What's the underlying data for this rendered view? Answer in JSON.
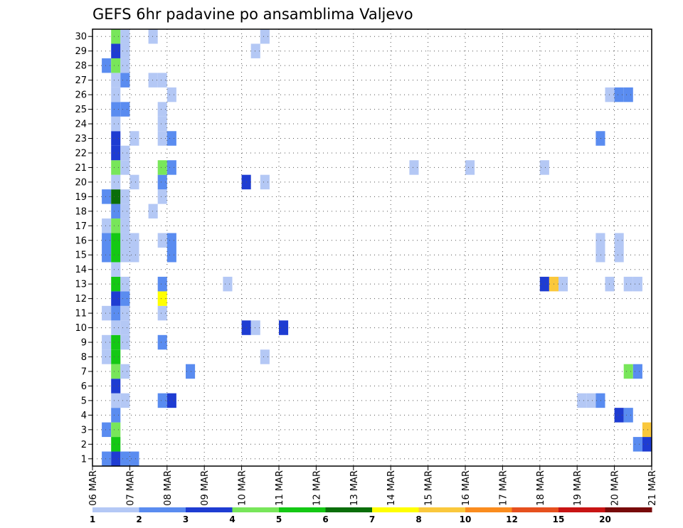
{
  "chart_data": {
    "type": "heatmap",
    "title": "GEFS 6hr padavine po ansamblima Valjevo",
    "xlabel": "",
    "ylabel": "",
    "x_ticks": [
      "06 MAR",
      "07 MAR",
      "08 MAR",
      "09 MAR",
      "10 MAR",
      "11 MAR",
      "12 MAR",
      "13 MAR",
      "14 MAR",
      "15 MAR",
      "16 MAR",
      "17 MAR",
      "18 MAR",
      "19 MAR",
      "20 MAR",
      "21 MAR"
    ],
    "y_ticks": [
      "1",
      "2",
      "3",
      "4",
      "5",
      "6",
      "7",
      "8",
      "9",
      "10",
      "11",
      "12",
      "13",
      "14",
      "15",
      "16",
      "17",
      "18",
      "19",
      "20",
      "21",
      "22",
      "23",
      "24",
      "25",
      "26",
      "27",
      "28",
      "29",
      "30"
    ],
    "x_range_days": [
      0,
      15
    ],
    "y_range": [
      0.5,
      30.5
    ],
    "grid": true,
    "time_step_hours": 6,
    "colorbar": {
      "placement": "bottom",
      "labels": [
        "1",
        "2",
        "3",
        "4",
        "5",
        "6",
        "7",
        "8",
        "10",
        "12",
        "15",
        "20"
      ],
      "colors": [
        "#b4c8f5",
        "#5a8cf0",
        "#1e3cd2",
        "#78e65a",
        "#14c814",
        "#0a6e0a",
        "#ffff00",
        "#fac83c",
        "#fa8c1e",
        "#e6501e",
        "#c81414",
        "#780a0a"
      ]
    },
    "cells": [
      {
        "member": 1,
        "x": [
          [
            0.25,
            1
          ],
          [
            0.5,
            2
          ],
          [
            0.75,
            1
          ],
          [
            1.0,
            1
          ]
        ]
      },
      {
        "member": 2,
        "x": [
          [
            0.5,
            4
          ],
          [
            14.5,
            1
          ],
          [
            14.75,
            2
          ]
        ]
      },
      {
        "member": 3,
        "x": [
          [
            0.25,
            1
          ],
          [
            0.5,
            3
          ],
          [
            14.75,
            7
          ]
        ]
      },
      {
        "member": 4,
        "x": [
          [
            0.5,
            1
          ],
          [
            14.0,
            2
          ],
          [
            14.25,
            1
          ]
        ]
      },
      {
        "member": 5,
        "x": [
          [
            0.5,
            0
          ],
          [
            0.75,
            0
          ],
          [
            1.75,
            1
          ],
          [
            2.0,
            2
          ],
          [
            13.0,
            0
          ],
          [
            13.25,
            0
          ],
          [
            13.5,
            1
          ]
        ]
      },
      {
        "member": 6,
        "x": [
          [
            0.5,
            2
          ]
        ]
      },
      {
        "member": 7,
        "x": [
          [
            0.5,
            3
          ],
          [
            0.75,
            0
          ],
          [
            2.5,
            1
          ],
          [
            14.25,
            3
          ],
          [
            14.5,
            1
          ]
        ]
      },
      {
        "member": 8,
        "x": [
          [
            0.25,
            0
          ],
          [
            0.5,
            4
          ],
          [
            4.5,
            0
          ]
        ]
      },
      {
        "member": 9,
        "x": [
          [
            0.25,
            0
          ],
          [
            0.5,
            4
          ],
          [
            0.75,
            0
          ],
          [
            1.75,
            1
          ]
        ]
      },
      {
        "member": 10,
        "x": [
          [
            0.5,
            0
          ],
          [
            0.75,
            0
          ],
          [
            4.0,
            2
          ],
          [
            4.25,
            0
          ],
          [
            5.0,
            2
          ]
        ]
      },
      {
        "member": 11,
        "x": [
          [
            0.25,
            0
          ],
          [
            0.5,
            1
          ],
          [
            0.75,
            0
          ],
          [
            1.75,
            0
          ]
        ]
      },
      {
        "member": 12,
        "x": [
          [
            0.5,
            2
          ],
          [
            0.75,
            1
          ],
          [
            1.75,
            6
          ]
        ]
      },
      {
        "member": 13,
        "x": [
          [
            0.5,
            4
          ],
          [
            0.75,
            0
          ],
          [
            1.75,
            1
          ],
          [
            3.5,
            0
          ],
          [
            12.0,
            2
          ],
          [
            12.25,
            7
          ],
          [
            12.5,
            0
          ],
          [
            13.75,
            0
          ],
          [
            14.25,
            0
          ],
          [
            14.5,
            0
          ]
        ]
      },
      {
        "member": 14,
        "x": [
          [
            0.5,
            0
          ]
        ]
      },
      {
        "member": 15,
        "x": [
          [
            0.25,
            1
          ],
          [
            0.5,
            4
          ],
          [
            0.75,
            0
          ],
          [
            1.0,
            0
          ],
          [
            2.0,
            1
          ],
          [
            13.5,
            0
          ],
          [
            14.0,
            0
          ]
        ]
      },
      {
        "member": 16,
        "x": [
          [
            0.25,
            1
          ],
          [
            0.5,
            4
          ],
          [
            0.75,
            0
          ],
          [
            1.0,
            0
          ],
          [
            1.75,
            0
          ],
          [
            2.0,
            1
          ],
          [
            13.5,
            0
          ],
          [
            14.0,
            0
          ]
        ]
      },
      {
        "member": 17,
        "x": [
          [
            0.25,
            0
          ],
          [
            0.5,
            3
          ],
          [
            0.75,
            0
          ]
        ]
      },
      {
        "member": 18,
        "x": [
          [
            0.5,
            1
          ],
          [
            0.75,
            0
          ],
          [
            1.5,
            0
          ]
        ]
      },
      {
        "member": 19,
        "x": [
          [
            0.25,
            1
          ],
          [
            0.5,
            5
          ],
          [
            0.75,
            0
          ],
          [
            1.75,
            0
          ]
        ]
      },
      {
        "member": 20,
        "x": [
          [
            0.5,
            0
          ],
          [
            1.0,
            0
          ],
          [
            1.75,
            1
          ],
          [
            4.0,
            2
          ],
          [
            4.5,
            0
          ]
        ]
      },
      {
        "member": 21,
        "x": [
          [
            0.5,
            3
          ],
          [
            0.75,
            0
          ],
          [
            1.75,
            3
          ],
          [
            2.0,
            1
          ],
          [
            8.5,
            0
          ],
          [
            10.0,
            0
          ],
          [
            12.0,
            0
          ]
        ]
      },
      {
        "member": 22,
        "x": [
          [
            0.5,
            2
          ],
          [
            0.75,
            0
          ]
        ]
      },
      {
        "member": 23,
        "x": [
          [
            0.5,
            2
          ],
          [
            1.0,
            0
          ],
          [
            1.75,
            0
          ],
          [
            2.0,
            1
          ],
          [
            13.5,
            1
          ]
        ]
      },
      {
        "member": 24,
        "x": [
          [
            0.5,
            0
          ],
          [
            1.75,
            0
          ]
        ]
      },
      {
        "member": 25,
        "x": [
          [
            0.5,
            1
          ],
          [
            0.75,
            1
          ],
          [
            1.75,
            0
          ]
        ]
      },
      {
        "member": 26,
        "x": [
          [
            0.5,
            0
          ],
          [
            2.0,
            0
          ],
          [
            13.75,
            0
          ],
          [
            14.0,
            1
          ],
          [
            14.25,
            1
          ]
        ]
      },
      {
        "member": 27,
        "x": [
          [
            0.5,
            0
          ],
          [
            0.75,
            1
          ],
          [
            1.5,
            0
          ],
          [
            1.75,
            0
          ]
        ]
      },
      {
        "member": 28,
        "x": [
          [
            0.25,
            1
          ],
          [
            0.5,
            3
          ],
          [
            0.75,
            0
          ]
        ]
      },
      {
        "member": 29,
        "x": [
          [
            0.5,
            2
          ],
          [
            0.75,
            0
          ],
          [
            4.25,
            0
          ]
        ]
      },
      {
        "member": 30,
        "x": [
          [
            0.5,
            3
          ],
          [
            0.75,
            0
          ],
          [
            1.5,
            0
          ],
          [
            4.5,
            0
          ]
        ]
      }
    ]
  }
}
